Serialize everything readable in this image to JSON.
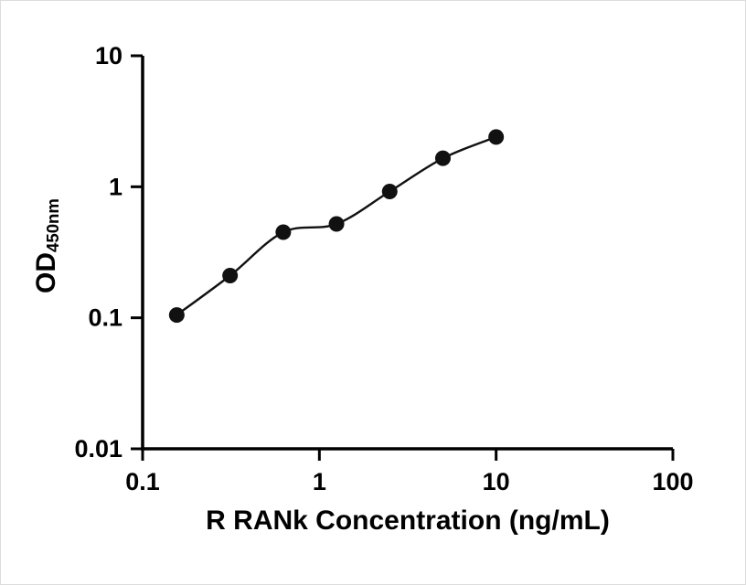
{
  "chart_data": {
    "type": "scatter",
    "title": "",
    "xlabel": "R RANk Concentration (ng/mL)",
    "ylabel": "OD",
    "ylabel_subscript": "450nm",
    "x_scale": "log",
    "y_scale": "log",
    "xlim": [
      0.1,
      100
    ],
    "ylim": [
      0.01,
      10
    ],
    "x_ticks": [
      0.1,
      1,
      10,
      100
    ],
    "x_tick_labels": [
      "0.1",
      "1",
      "10",
      "100"
    ],
    "y_ticks": [
      0.01,
      0.1,
      1,
      10
    ],
    "y_tick_labels": [
      "0.01",
      "0.1",
      "1",
      "10"
    ],
    "grid": false,
    "legend": false,
    "marker_color": "#111111",
    "line_color": "#111111",
    "axis_color": "#000000",
    "points": {
      "x": [
        0.156,
        0.3125,
        0.625,
        1.25,
        2.5,
        5,
        10
      ],
      "y": [
        0.105,
        0.21,
        0.45,
        0.52,
        0.92,
        1.65,
        2.4
      ]
    }
  }
}
